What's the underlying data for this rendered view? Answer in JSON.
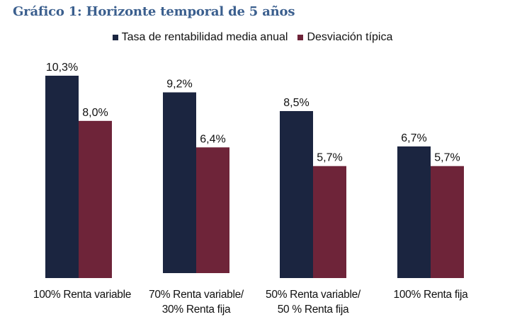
{
  "chart_data": {
    "type": "bar",
    "title": "Gráfico 1: Horizonte temporal de 5 años",
    "xlabel": "",
    "ylabel": "",
    "ylim": [
      0,
      10.3
    ],
    "grid": false,
    "legend_position": "top",
    "categories": [
      "100% Renta variable",
      "70% Renta variable/\n30% Renta fija",
      "50% Renta variable/\n50 % Renta fija",
      "100% Renta fija"
    ],
    "series": [
      {
        "name": "Tasa de rentabilidad media anual",
        "color": "#1b2540",
        "values": [
          10.3,
          9.2,
          8.5,
          6.7
        ],
        "labels": [
          "10,3%",
          "9,2%",
          "8,5%",
          "6,7%"
        ]
      },
      {
        "name": "Desviación típica",
        "color": "#6e2439",
        "values": [
          8.0,
          6.4,
          5.7,
          5.7
        ],
        "labels": [
          "8,0%",
          "6,4%",
          "5,7%",
          "5,7%"
        ]
      }
    ]
  }
}
